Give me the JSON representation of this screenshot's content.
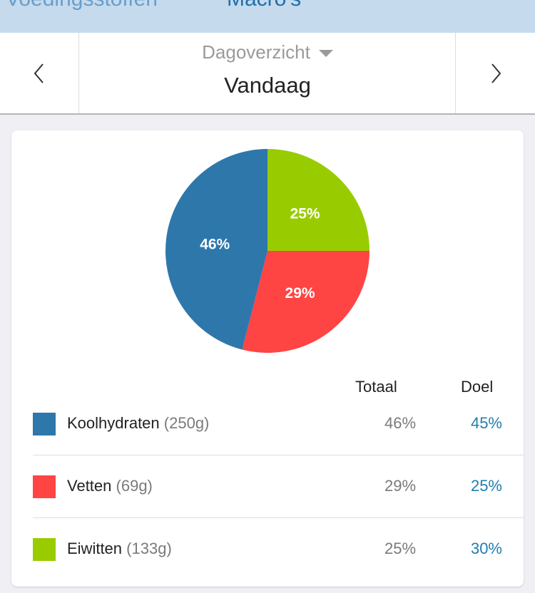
{
  "tabs": [
    {
      "label": "Voedingsstoffen",
      "active": false
    },
    {
      "label": "Macro's",
      "active": true
    }
  ],
  "datebar": {
    "mode": "Dagoverzicht",
    "day": "Vandaag",
    "prev_icon": "chevron-left-icon",
    "next_icon": "chevron-right-icon"
  },
  "table": {
    "col_total": "Totaal",
    "col_goal": "Doel"
  },
  "chart_data": {
    "type": "pie",
    "slices": [
      {
        "name": "Eiwitten",
        "value": 25,
        "label": "25%",
        "color": "#99cc00"
      },
      {
        "name": "Vetten",
        "value": 29,
        "label": "29%",
        "color": "#ff4444"
      },
      {
        "name": "Koolhydraten",
        "value": 46,
        "label": "46%",
        "color": "#2e77ab"
      }
    ]
  },
  "rows": [
    {
      "name": "Koolhydraten",
      "grams": "(250g)",
      "total": "46%",
      "goal": "45%",
      "color": "#2e77ab"
    },
    {
      "name": "Vetten",
      "grams": "(69g)",
      "total": "29%",
      "goal": "25%",
      "color": "#ff4444"
    },
    {
      "name": "Eiwitten",
      "grams": "(133g)",
      "total": "25%",
      "goal": "30%",
      "color": "#99cc00"
    }
  ]
}
